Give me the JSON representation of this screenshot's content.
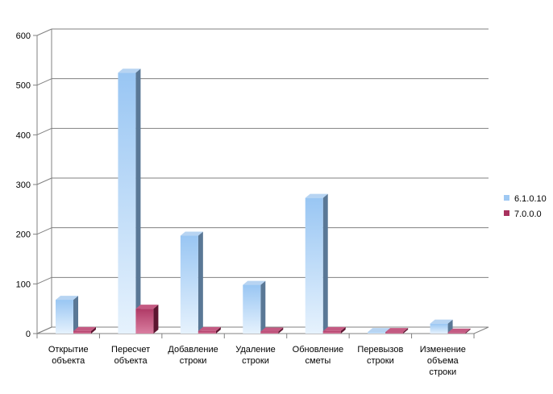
{
  "chart_data": {
    "type": "bar",
    "title": "",
    "xlabel": "",
    "ylabel": "",
    "ylim": [
      0,
      600
    ],
    "yticks": [
      0,
      100,
      200,
      300,
      400,
      500,
      600
    ],
    "grid": true,
    "legend_position": "right",
    "categories": [
      [
        "Открытие",
        "объекта"
      ],
      [
        "Пересчет",
        "объекта"
      ],
      [
        "Добавление",
        "строки"
      ],
      [
        "Удаление",
        "строки"
      ],
      [
        "Обновление",
        "сметы"
      ],
      [
        "Перевызов",
        "строки"
      ],
      [
        "Изменение",
        "объема",
        "строки"
      ]
    ],
    "series": [
      {
        "name": "6.1.0.10",
        "color": "#a7cdf5",
        "values": [
          68,
          525,
          197,
          98,
          273,
          3,
          20
        ]
      },
      {
        "name": "7.0.0.0",
        "color": "#a8325e",
        "values": [
          5,
          50,
          5,
          4,
          5,
          3,
          2
        ]
      }
    ]
  }
}
